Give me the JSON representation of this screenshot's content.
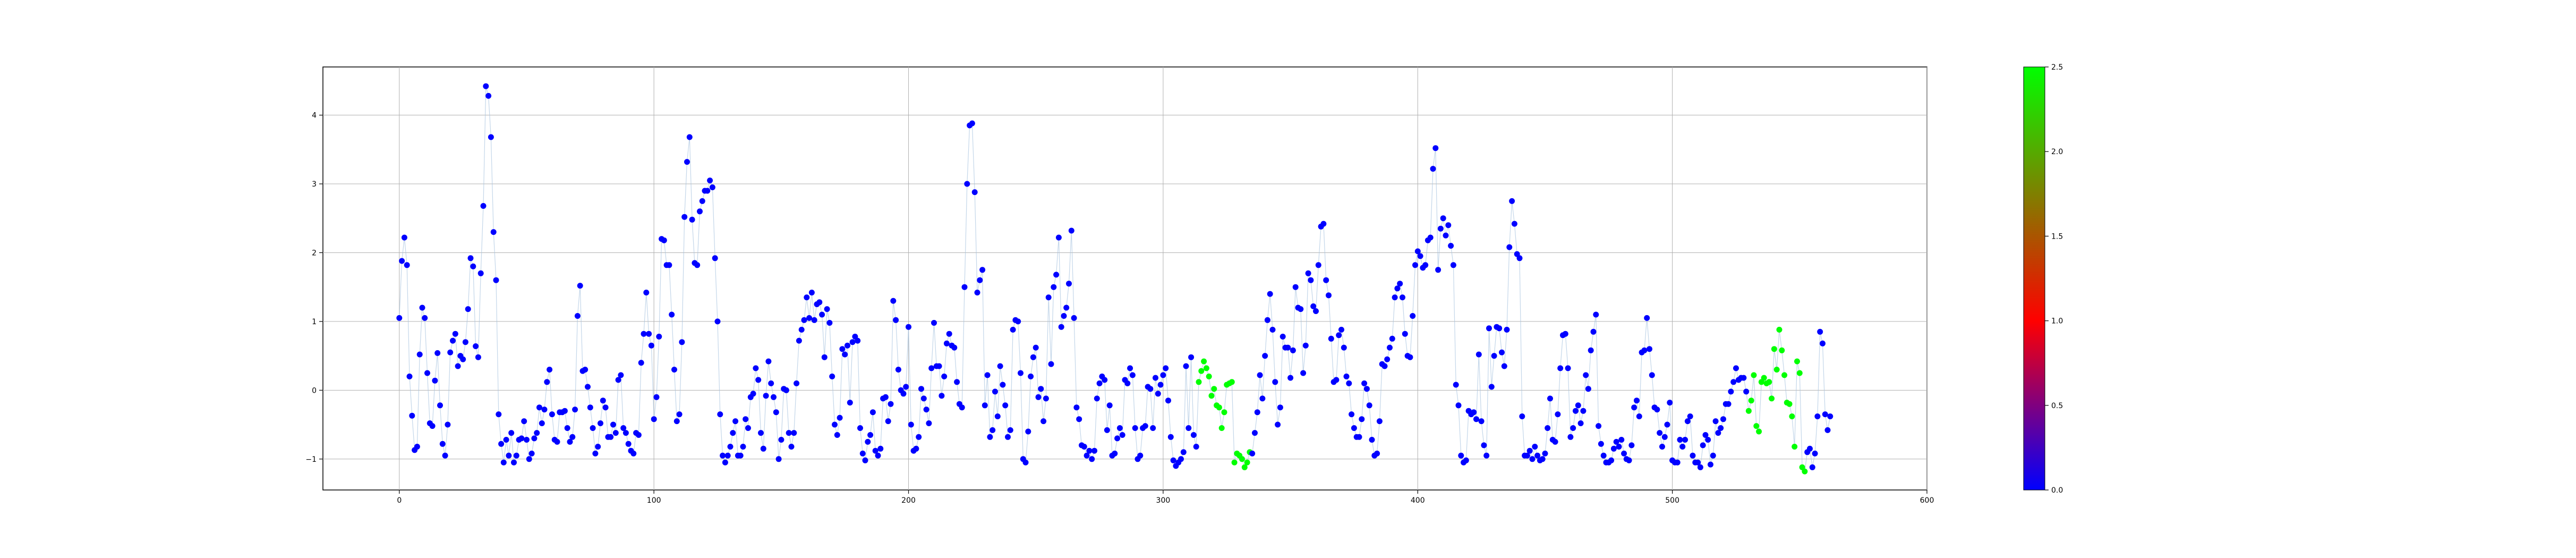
{
  "chart_data": {
    "type": "scatter",
    "title": "",
    "xlabel": "",
    "ylabel": "",
    "xlim": [
      -30,
      600
    ],
    "ylim": [
      -1.45,
      4.7
    ],
    "grid": true,
    "x_ticks": [
      0,
      100,
      200,
      300,
      400,
      500,
      600
    ],
    "y_ticks": [
      -1,
      0,
      1,
      2,
      3,
      4
    ],
    "connecting_line": true,
    "colorbar": {
      "range": [
        0,
        2.5
      ],
      "ticks": [
        0.0,
        0.5,
        1.0,
        1.5,
        2.0,
        2.5
      ],
      "colors": [
        "#0000ff",
        "#ff0000",
        "#00ff00"
      ]
    },
    "point_colors": {
      "low": "#0000ff",
      "high": "#00ff00"
    },
    "series": [
      {
        "values": [
          1.05,
          1.88,
          2.22,
          1.82,
          0.2,
          -0.37,
          -0.87,
          -0.82,
          0.52,
          1.2,
          1.05,
          0.25,
          -0.48,
          -0.52,
          0.14,
          0.54,
          -0.22,
          -0.78,
          -0.95,
          -0.5,
          0.55,
          0.72,
          0.82,
          0.35,
          0.5,
          0.45,
          0.7,
          1.18,
          1.92,
          1.8,
          0.64,
          0.48,
          1.7,
          2.68,
          4.42,
          4.28,
          3.68,
          2.3,
          1.6,
          -0.35,
          -0.78,
          -1.05,
          -0.72,
          -0.95,
          -0.62,
          -1.05,
          -0.95,
          -0.72,
          -0.7,
          -0.45,
          -0.72,
          -1.0,
          -0.92,
          -0.7,
          -0.62,
          -0.25,
          -0.48,
          -0.28,
          0.12,
          0.3,
          -0.35,
          -0.72,
          -0.75,
          -0.32,
          -0.32,
          -0.3,
          -0.55,
          -0.75,
          -0.68,
          -0.28,
          1.08,
          1.52,
          0.28,
          0.3,
          0.05,
          -0.25,
          -0.55,
          -0.92,
          -0.82,
          -0.48,
          -0.15,
          -0.25,
          -0.68,
          -0.68,
          -0.5,
          -0.62,
          0.15,
          0.22,
          -0.55,
          -0.62,
          -0.78,
          -0.88,
          -0.92,
          -0.62,
          -0.65,
          0.4,
          0.82,
          1.42,
          0.82,
          0.65,
          -0.42,
          -0.1,
          0.78,
          2.2,
          2.18,
          1.82,
          1.82,
          1.1,
          0.3,
          -0.45,
          -0.35,
          0.7,
          2.52,
          3.32,
          3.68,
          2.48,
          1.85,
          1.82,
          2.6,
          2.75,
          2.9,
          2.9,
          3.05,
          2.95,
          1.92,
          1.0,
          -0.35,
          -0.95,
          -1.05,
          -0.95,
          -0.82,
          -0.62,
          -0.45,
          -0.95,
          -0.95,
          -0.82,
          -0.42,
          -0.55,
          -0.1,
          -0.05,
          0.32,
          0.15,
          -0.62,
          -0.85,
          -0.08,
          0.42,
          0.1,
          -0.1,
          -0.32,
          -1.0,
          -0.72,
          0.02,
          0.0,
          -0.62,
          -0.82,
          -0.62,
          0.1,
          0.72,
          0.88,
          1.02,
          1.35,
          1.05,
          1.42,
          1.02,
          1.25,
          1.28,
          1.1,
          0.48,
          1.18,
          0.98,
          0.2,
          -0.5,
          -0.65,
          -0.4,
          0.6,
          0.52,
          0.65,
          -0.18,
          0.7,
          0.78,
          0.72,
          -0.55,
          -0.92,
          -1.02,
          -0.75,
          -0.65,
          -0.32,
          -0.88,
          -0.95,
          -0.85,
          -0.12,
          -0.1,
          -0.45,
          -0.2,
          1.3,
          1.02,
          0.3,
          0.0,
          -0.05,
          0.05,
          0.92,
          -0.5,
          -0.88,
          -0.85,
          -0.68,
          0.02,
          -0.12,
          -0.28,
          -0.48,
          0.32,
          0.98,
          0.35,
          0.35,
          -0.08,
          0.2,
          0.68,
          0.82,
          0.65,
          0.62,
          0.12,
          -0.2,
          -0.25,
          1.5,
          3.0,
          3.85,
          3.88,
          2.88,
          1.42,
          1.6,
          1.75,
          -0.22,
          0.22,
          -0.68,
          -0.58,
          -0.02,
          -0.38,
          0.35,
          0.08,
          -0.22,
          -0.68,
          -0.58,
          0.88,
          1.02,
          1.0,
          0.25,
          -1.0,
          -1.05,
          -0.6,
          0.2,
          0.48,
          0.62,
          -0.1,
          0.02,
          -0.45,
          -0.12,
          1.35,
          0.38,
          1.5,
          1.68,
          2.22,
          0.92,
          1.08,
          1.2,
          1.55,
          2.32,
          1.05,
          -0.25,
          -0.42,
          -0.8,
          -0.82,
          -0.95,
          -0.88,
          -1.0,
          -0.88,
          -0.12,
          0.1,
          0.2,
          0.15,
          -0.58,
          -0.22,
          -0.95,
          -0.92,
          -0.7,
          -0.55,
          -0.65,
          0.15,
          0.1,
          0.32,
          0.22,
          -0.55,
          -1.0,
          -0.95,
          -0.55,
          -0.52,
          0.05,
          0.02,
          -0.55,
          0.18,
          -0.05,
          0.08,
          0.22,
          0.32,
          -0.15,
          -0.68,
          -1.02,
          -1.1,
          -1.05,
          -1.0,
          -0.9,
          0.35,
          -0.55,
          0.48,
          -0.65,
          -0.82,
          0.12,
          0.28,
          0.42,
          0.32,
          0.2,
          -0.08,
          0.02,
          -0.22,
          -0.25,
          -0.55,
          -0.32,
          0.08,
          0.1,
          0.12,
          -1.05,
          -0.92,
          -0.95,
          -1.0,
          -1.12,
          -1.05,
          -0.9,
          -0.92,
          -0.62,
          -0.32,
          0.22,
          -0.12,
          0.5,
          1.02,
          1.4,
          0.88,
          0.12,
          -0.5,
          -0.25,
          0.78,
          0.62,
          0.62,
          0.18,
          0.58,
          1.5,
          1.2,
          1.18,
          0.25,
          0.65,
          1.7,
          1.6,
          1.22,
          1.15,
          1.82,
          2.38,
          2.42,
          1.6,
          1.38,
          0.75,
          0.12,
          0.15,
          0.8,
          0.88,
          0.62,
          0.2,
          0.1,
          -0.35,
          -0.55,
          -0.68,
          -0.68,
          -0.42,
          0.1,
          0.02,
          -0.22,
          -0.72,
          -0.95,
          -0.92,
          -0.45,
          0.38,
          0.35,
          0.45,
          0.62,
          0.75,
          1.35,
          1.48,
          1.55,
          1.35,
          0.82,
          0.5,
          0.48,
          1.08,
          1.82,
          2.02,
          1.95,
          1.78,
          1.82,
          2.18,
          2.22,
          3.22,
          3.52,
          1.75,
          2.35,
          2.5,
          2.25,
          2.4,
          2.1,
          1.82,
          0.08,
          -0.22,
          -0.95,
          -1.05,
          -1.02,
          -0.3,
          -0.35,
          -0.32,
          -0.42,
          0.52,
          -0.45,
          -0.8,
          -0.95,
          0.9,
          0.05,
          0.5,
          0.92,
          0.9,
          0.55,
          0.35,
          0.88,
          2.08,
          2.75,
          2.42,
          1.98,
          1.92,
          -0.38,
          -0.95,
          -0.95,
          -0.88,
          -1.0,
          -0.82,
          -0.95,
          -1.02,
          -1.0,
          -0.92,
          -0.55,
          -0.12,
          -0.72,
          -0.75,
          -0.35,
          0.32,
          0.8,
          0.82,
          0.32,
          -0.68,
          -0.55,
          -0.3,
          -0.22,
          -0.48,
          -0.3,
          0.22,
          0.02,
          0.58,
          0.85,
          1.1,
          -0.52,
          -0.78,
          -0.95,
          -1.05,
          -1.05,
          -1.02,
          -0.85,
          -0.75,
          -0.82,
          -0.72,
          -0.92,
          -1.0,
          -1.02,
          -0.8,
          -0.25,
          -0.15,
          -0.38,
          0.55,
          0.58,
          1.05,
          0.6,
          0.22,
          -0.25,
          -0.28,
          -0.62,
          -0.82,
          -0.68,
          -0.5,
          -0.18,
          -1.02,
          -1.05,
          -1.05,
          -0.72,
          -0.82,
          -0.72,
          -0.45,
          -0.38,
          -0.95,
          -1.05,
          -1.05,
          -1.12,
          -0.8,
          -0.65,
          -0.72,
          -1.08,
          -0.95,
          -0.45,
          -0.62,
          -0.55,
          -0.42,
          -0.2,
          -0.2,
          -0.02,
          0.12,
          0.32,
          0.15,
          0.18,
          0.18,
          -0.02,
          -0.3,
          -0.15,
          0.22,
          -0.52,
          -0.6,
          0.12,
          0.18,
          0.1,
          0.12,
          -0.12,
          0.6,
          0.3,
          0.88,
          0.58,
          0.22,
          -0.18,
          -0.2,
          -0.38,
          -0.82,
          0.42,
          0.25,
          -1.12,
          -1.18,
          -0.9,
          -0.85,
          -1.12,
          -0.92,
          -0.38,
          0.85,
          0.68,
          -0.35,
          -0.58,
          -0.38
        ],
        "highlight_ranges": [
          [
            314,
            334
          ],
          [
            530,
            552
          ]
        ]
      }
    ]
  }
}
